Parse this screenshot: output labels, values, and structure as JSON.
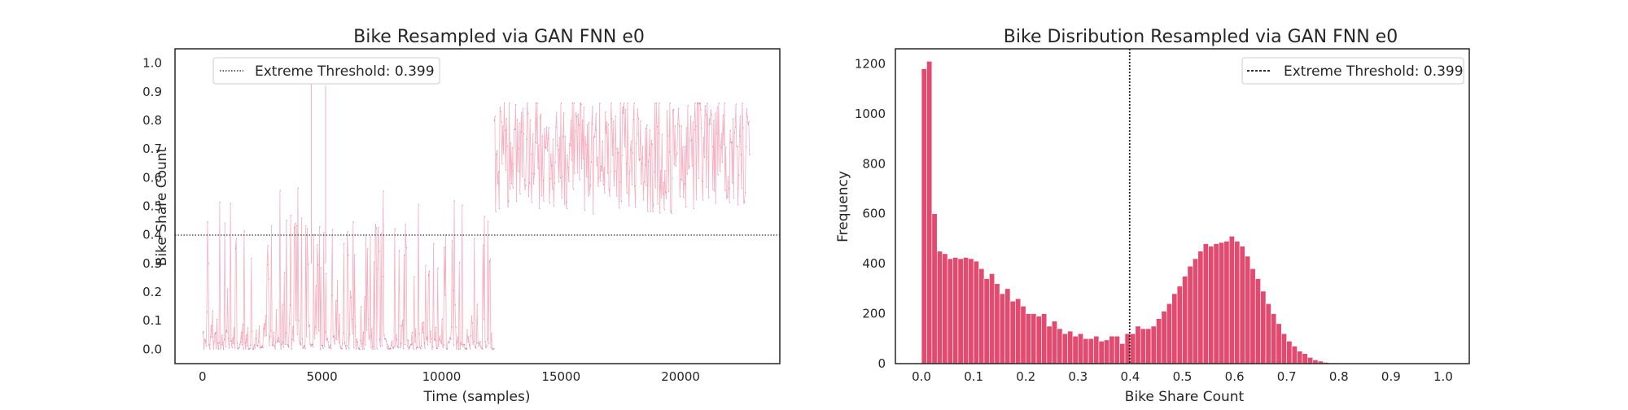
{
  "chart_data": [
    {
      "type": "line",
      "title": "Bike Resampled via GAN FNN e0",
      "xlabel": "Time (samples)",
      "ylabel": "Bike Share Count",
      "xlim": [
        -1150,
        24150
      ],
      "ylim": [
        -0.05,
        1.05
      ],
      "xticks": [
        0,
        5000,
        10000,
        15000,
        20000
      ],
      "xtick_labels": [
        "0",
        "5000",
        "10000",
        "15000",
        "20000"
      ],
      "yticks": [
        0.0,
        0.1,
        0.2,
        0.3,
        0.4,
        0.5,
        0.6,
        0.7,
        0.8,
        0.9,
        1.0
      ],
      "ytick_labels": [
        "0.0",
        "0.1",
        "0.2",
        "0.3",
        "0.4",
        "0.5",
        "0.6",
        "0.7",
        "0.8",
        "0.9",
        "1.0"
      ],
      "grid": false,
      "legend": {
        "entries": [
          "Extreme Threshold: 0.399"
        ],
        "location": "upper left"
      },
      "threshold": 0.399,
      "series_colors": {
        "line": "#f4a9bd",
        "points": "#8a4d67",
        "threshold": "#333333"
      },
      "segments": [
        {
          "x_start": 0,
          "x_end": 8600,
          "low_range": [
            0.0,
            0.12
          ],
          "high_peak_range": [
            0.42,
            0.62
          ]
        },
        {
          "x_start": 8600,
          "x_end": 8700,
          "low_range": [
            0.0,
            0.04
          ],
          "high_peak_range": [
            0.05,
            0.12
          ]
        },
        {
          "x_start": 8700,
          "x_end": 12200,
          "low_range": [
            0.0,
            0.12
          ],
          "high_peak_range": [
            0.42,
            0.62
          ]
        },
        {
          "x_start": 12200,
          "x_end": 22900,
          "low_range": [
            0.32,
            0.8
          ],
          "high_peak_range": [
            0.7,
            0.85
          ]
        }
      ],
      "spikes": [
        {
          "x": 4550,
          "y": 0.93
        },
        {
          "x": 5150,
          "y": 0.92
        }
      ]
    },
    {
      "type": "bar",
      "title": "Bike Disribution Resampled via GAN FNN e0",
      "xlabel": "Bike Share Count",
      "ylabel": "Frequency",
      "xlim": [
        -0.05,
        1.05
      ],
      "ylim": [
        0,
        1260
      ],
      "xticks": [
        0.0,
        0.1,
        0.2,
        0.3,
        0.4,
        0.5,
        0.6,
        0.7,
        0.8,
        0.9,
        1.0
      ],
      "xtick_labels": [
        "0.0",
        "0.1",
        "0.2",
        "0.3",
        "0.4",
        "0.5",
        "0.6",
        "0.7",
        "0.8",
        "0.9",
        "1.0"
      ],
      "yticks": [
        0,
        200,
        400,
        600,
        800,
        1000,
        1200
      ],
      "ytick_labels": [
        "0",
        "200",
        "400",
        "600",
        "800",
        "1000",
        "1200"
      ],
      "grid": false,
      "legend": {
        "entries": [
          "Extreme Threshold: 0.399"
        ],
        "location": "upper right"
      },
      "threshold": 0.399,
      "bar_color": "#e34a6f",
      "bin_start": 0.0,
      "bin_width": 0.01,
      "values": [
        1180,
        1210,
        600,
        450,
        440,
        420,
        425,
        420,
        425,
        420,
        410,
        380,
        340,
        360,
        320,
        280,
        300,
        250,
        260,
        230,
        200,
        200,
        190,
        200,
        150,
        170,
        140,
        120,
        130,
        110,
        120,
        100,
        100,
        110,
        90,
        95,
        110,
        110,
        80,
        120,
        120,
        150,
        140,
        140,
        150,
        180,
        210,
        240,
        280,
        310,
        350,
        390,
        420,
        450,
        480,
        470,
        480,
        485,
        490,
        510,
        490,
        470,
        430,
        380,
        340,
        290,
        240,
        200,
        160,
        120,
        90,
        70,
        50,
        40,
        25,
        15,
        10,
        5,
        3,
        2,
        2,
        1,
        1,
        1,
        1,
        1,
        0,
        0,
        0,
        0,
        0,
        0,
        0,
        0,
        0,
        0,
        0,
        0,
        0,
        1
      ]
    }
  ]
}
